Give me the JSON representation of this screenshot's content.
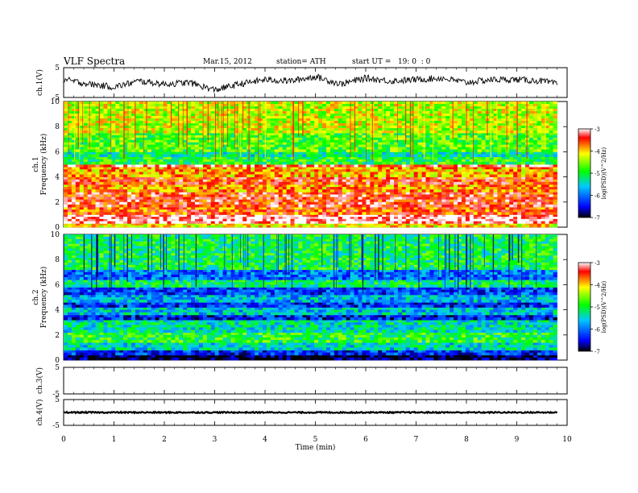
{
  "header": {
    "title": "VLF Spectra",
    "date": "Mar.15, 2012",
    "station": "station= ATH",
    "start": "start UT =   19: 0  : 0"
  },
  "x_axis": {
    "label": "Time (min)",
    "ticks": [
      "0",
      "1",
      "2",
      "3",
      "4",
      "5",
      "6",
      "7",
      "8",
      "9",
      "10"
    ]
  },
  "chart_data": [
    {
      "type": "line",
      "panel": "ch1-waveform",
      "ylabel": "ch.1(V)",
      "ylim": [
        -5,
        5
      ],
      "ytick_labels": [
        "5",
        "-5"
      ],
      "xlim": [
        0,
        10
      ],
      "data_xmax": 9.8,
      "x": [
        0,
        0.5,
        1,
        1.5,
        2,
        2.5,
        3,
        3.5,
        4,
        4.5,
        5,
        5.5,
        6,
        6.5,
        7,
        7.5,
        8,
        8.5,
        9,
        9.5,
        9.8
      ],
      "y": [
        1.0,
        -0.5,
        -1.5,
        0.5,
        -0.5,
        0.0,
        -2.5,
        -0.5,
        1.0,
        0.5,
        2.0,
        -0.5,
        1.5,
        0.5,
        1.0,
        1.5,
        0.0,
        1.0,
        1.0,
        0.5,
        -0.5
      ]
    },
    {
      "type": "heatmap",
      "panel": "ch1-spectrogram",
      "ylabel": "Frequency (kHz)",
      "channel_label": "ch.1",
      "ylim": [
        0,
        10
      ],
      "ytick_labels": [
        "0",
        "2",
        "4",
        "6",
        "8",
        "10"
      ],
      "xlim": [
        0,
        10
      ],
      "data_xmax": 9.8,
      "colorbar": {
        "label": "log(PSD)(V^2/Hz)",
        "range": [
          -7,
          -3
        ],
        "tick_labels": [
          "-3",
          "-4",
          "-5",
          "-6",
          "-7"
        ]
      },
      "frequency_profile_kHz": [
        {
          "f_lo": 0.0,
          "f_hi": 0.3,
          "level": -4.2
        },
        {
          "f_lo": 0.3,
          "f_hi": 1.0,
          "level": -3.1
        },
        {
          "f_lo": 1.0,
          "f_hi": 1.6,
          "level": -3.7
        },
        {
          "f_lo": 1.6,
          "f_hi": 2.8,
          "level": -3.5
        },
        {
          "f_lo": 2.8,
          "f_hi": 3.4,
          "level": -3.9
        },
        {
          "f_lo": 3.4,
          "f_hi": 4.0,
          "level": -3.6
        },
        {
          "f_lo": 4.0,
          "f_hi": 4.8,
          "level": -4.0
        },
        {
          "f_lo": 4.8,
          "f_hi": 5.0,
          "level": -3.3
        },
        {
          "f_lo": 5.0,
          "f_hi": 5.6,
          "level": -5.0
        },
        {
          "f_lo": 5.6,
          "f_hi": 6.0,
          "level": -5.3
        },
        {
          "f_lo": 6.0,
          "f_hi": 7.5,
          "level": -4.8
        },
        {
          "f_lo": 7.5,
          "f_hi": 10.0,
          "level": -4.4
        }
      ]
    },
    {
      "type": "heatmap",
      "panel": "ch2-spectrogram",
      "ylabel": "Frequency (kHz)",
      "channel_label": "ch.2",
      "ylim": [
        0,
        10
      ],
      "ytick_labels": [
        "0",
        "2",
        "4",
        "6",
        "8",
        "10"
      ],
      "xlim": [
        0,
        10
      ],
      "data_xmax": 9.8,
      "colorbar": {
        "label": "log(PSD)(V^2/Hz)",
        "range": [
          -7,
          -3
        ],
        "tick_labels": [
          "-3",
          "-4",
          "-5",
          "-6",
          "-7"
        ]
      },
      "frequency_profile_kHz": [
        {
          "f_lo": 0.0,
          "f_hi": 0.4,
          "level": -6.9
        },
        {
          "f_lo": 0.4,
          "f_hi": 0.8,
          "level": -6.3
        },
        {
          "f_lo": 0.8,
          "f_hi": 1.4,
          "level": -5.5
        },
        {
          "f_lo": 1.4,
          "f_hi": 2.2,
          "level": -5.0
        },
        {
          "f_lo": 2.2,
          "f_hi": 3.2,
          "level": -5.4
        },
        {
          "f_lo": 3.2,
          "f_hi": 3.6,
          "level": -6.4
        },
        {
          "f_lo": 3.6,
          "f_hi": 4.2,
          "level": -5.6
        },
        {
          "f_lo": 4.2,
          "f_hi": 4.6,
          "level": -6.3
        },
        {
          "f_lo": 4.6,
          "f_hi": 5.2,
          "level": -5.7
        },
        {
          "f_lo": 5.2,
          "f_hi": 5.8,
          "level": -6.2
        },
        {
          "f_lo": 5.8,
          "f_hi": 6.4,
          "level": -5.2
        },
        {
          "f_lo": 6.4,
          "f_hi": 7.2,
          "level": -6.0
        },
        {
          "f_lo": 7.2,
          "f_hi": 10.0,
          "level": -5.1
        }
      ]
    },
    {
      "type": "line",
      "panel": "ch3-waveform",
      "ylabel": "ch.3(V)",
      "ylim": [
        -5,
        5
      ],
      "ytick_labels": [
        "5",
        "-5"
      ],
      "xlim": [
        0,
        10
      ],
      "data_xmax": 9.8,
      "x": [
        0,
        9.8
      ],
      "y": [
        -5,
        -5
      ]
    },
    {
      "type": "line",
      "panel": "ch4-waveform",
      "ylabel": "ch.4(V)",
      "ylim": [
        -5,
        5
      ],
      "ytick_labels": [
        "5",
        "-5"
      ],
      "xlim": [
        0,
        10
      ],
      "data_xmax": 9.8,
      "x": [
        0,
        9.8
      ],
      "y": [
        0,
        0
      ]
    }
  ],
  "colors": {
    "colormap": [
      "#000000",
      "#0000ff",
      "#00c8ff",
      "#00ff00",
      "#ffff00",
      "#ff0000",
      "#ffffff"
    ],
    "waveform": "#000000"
  }
}
